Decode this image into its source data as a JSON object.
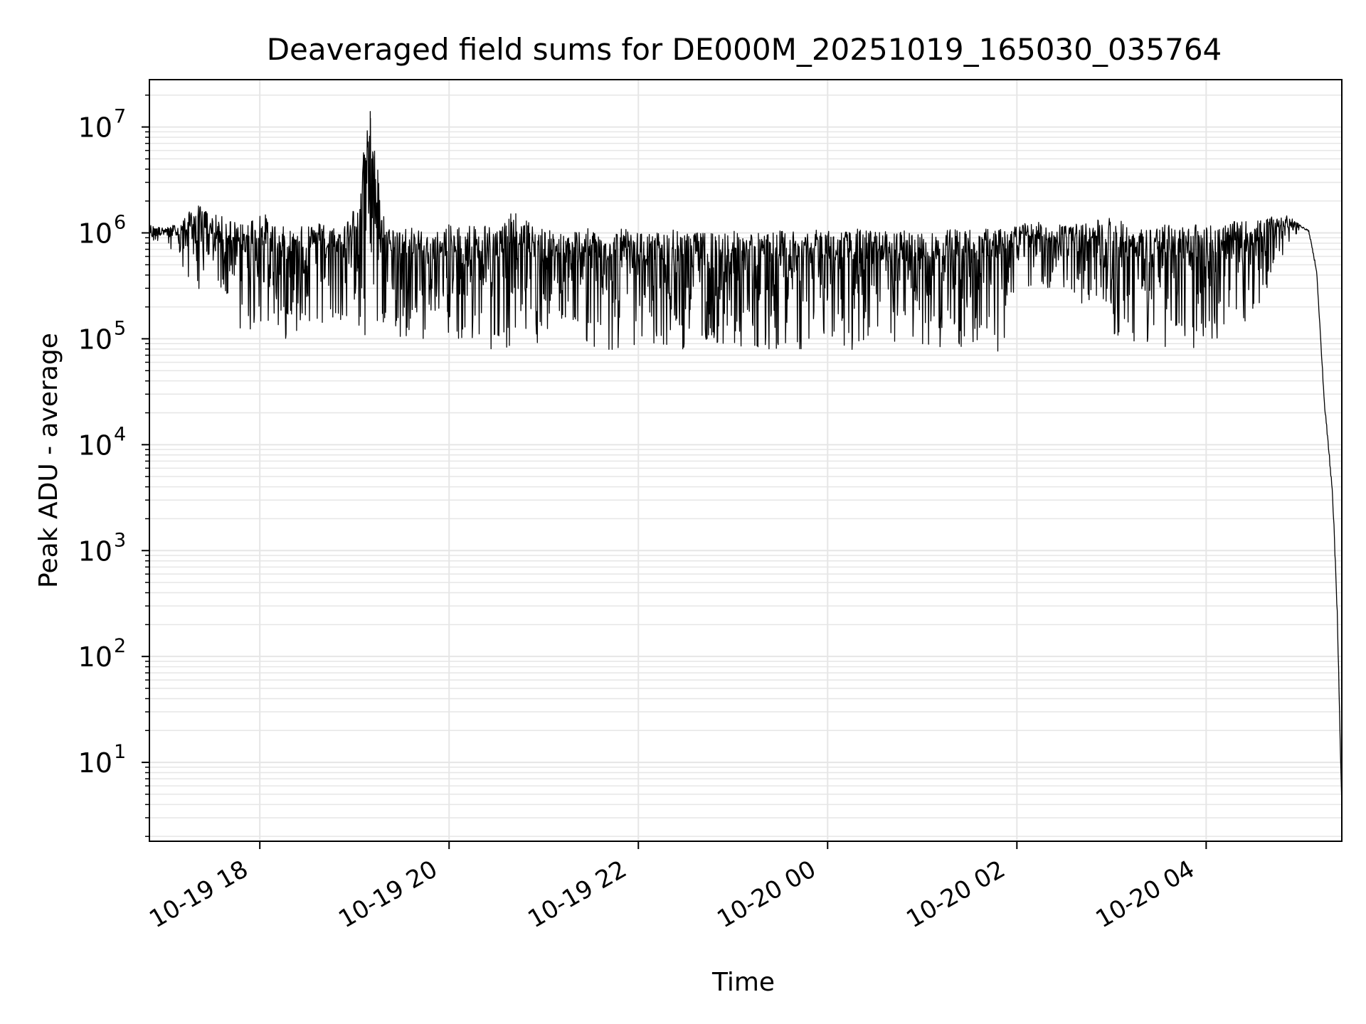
{
  "chart_data": {
    "type": "line",
    "title": "Deaveraged field sums for DE000M_20251019_165030_035764",
    "xlabel": "Time",
    "ylabel": "Peak ADU - average",
    "y_scale": "log",
    "ylim": [
      1.8,
      28000000
    ],
    "xlim": [
      "2025-10-19 16:50",
      "2025-10-20 05:26"
    ],
    "grid": true,
    "legend": "none",
    "line_color": "#000000",
    "grid_color": "#e6e6e6",
    "x_ticks": [
      {
        "value": "2025-10-19 18:00",
        "label": "10-19 18"
      },
      {
        "value": "2025-10-19 20:00",
        "label": "10-19 20"
      },
      {
        "value": "2025-10-19 22:00",
        "label": "10-19 22"
      },
      {
        "value": "2025-10-20 00:00",
        "label": "10-20 00"
      },
      {
        "value": "2025-10-20 02:00",
        "label": "10-20 02"
      },
      {
        "value": "2025-10-20 04:00",
        "label": "10-20 04"
      }
    ],
    "y_ticks": [
      {
        "value": 10,
        "base": "10",
        "exp": "1"
      },
      {
        "value": 100,
        "base": "10",
        "exp": "2"
      },
      {
        "value": 1000,
        "base": "10",
        "exp": "3"
      },
      {
        "value": 10000,
        "base": "10",
        "exp": "4"
      },
      {
        "value": 100000,
        "base": "10",
        "exp": "5"
      },
      {
        "value": 1000000,
        "base": "10",
        "exp": "6"
      },
      {
        "value": 10000000,
        "base": "10",
        "exp": "7"
      }
    ],
    "series": [
      {
        "x": [
          "2025-10-19 16:50",
          "2025-10-19 17:00",
          "2025-10-19 17:10",
          "2025-10-19 17:20",
          "2025-10-19 17:30",
          "2025-10-19 17:40",
          "2025-10-19 17:50",
          "2025-10-19 18:00",
          "2025-10-19 18:10",
          "2025-10-19 18:20",
          "2025-10-19 18:30",
          "2025-10-19 18:40",
          "2025-10-19 18:50",
          "2025-10-19 19:00",
          "2025-10-19 19:10",
          "2025-10-19 19:20",
          "2025-10-19 19:30",
          "2025-10-19 19:40",
          "2025-10-19 19:50",
          "2025-10-19 20:00",
          "2025-10-19 20:10",
          "2025-10-19 20:20",
          "2025-10-19 20:30",
          "2025-10-19 20:40",
          "2025-10-19 20:50",
          "2025-10-19 21:00",
          "2025-10-19 21:10",
          "2025-10-19 21:20",
          "2025-10-19 21:30",
          "2025-10-19 21:40",
          "2025-10-19 21:50",
          "2025-10-19 22:00",
          "2025-10-19 22:10",
          "2025-10-19 22:20",
          "2025-10-19 22:30",
          "2025-10-19 22:40",
          "2025-10-19 22:50",
          "2025-10-19 23:00",
          "2025-10-19 23:10",
          "2025-10-19 23:20",
          "2025-10-19 23:30",
          "2025-10-19 23:40",
          "2025-10-19 23:50",
          "2025-10-20 00:00",
          "2025-10-20 00:10",
          "2025-10-20 00:20",
          "2025-10-20 00:30",
          "2025-10-20 00:40",
          "2025-10-20 00:50",
          "2025-10-20 01:00",
          "2025-10-20 01:10",
          "2025-10-20 01:20",
          "2025-10-20 01:30",
          "2025-10-20 01:40",
          "2025-10-20 01:50",
          "2025-10-20 02:00",
          "2025-10-20 02:10",
          "2025-10-20 02:20",
          "2025-10-20 02:30",
          "2025-10-20 02:40",
          "2025-10-20 02:50",
          "2025-10-20 03:00",
          "2025-10-20 03:10",
          "2025-10-20 03:20",
          "2025-10-20 03:30",
          "2025-10-20 03:40",
          "2025-10-20 03:50",
          "2025-10-20 04:00",
          "2025-10-20 04:10",
          "2025-10-20 04:20",
          "2025-10-20 04:30",
          "2025-10-20 04:40",
          "2025-10-20 04:50",
          "2025-10-20 05:00",
          "2025-10-20 05:05",
          "2025-10-20 05:10",
          "2025-10-20 05:15",
          "2025-10-20 05:20",
          "2025-10-20 05:23",
          "2025-10-20 05:24",
          "2025-10-20 05:25",
          "2025-10-20 05:26"
        ],
        "y_high": [
          1200000,
          1100000,
          1300000,
          1900000,
          1500000,
          1400000,
          1200000,
          1700000,
          1200000,
          1100000,
          1200000,
          1300000,
          1100000,
          1800000,
          14000000,
          1100000,
          1200000,
          1100000,
          1000000,
          1200000,
          1200000,
          1300000,
          1100000,
          1600000,
          1300000,
          1100000,
          1000000,
          1100000,
          1100000,
          1000000,
          1100000,
          1000000,
          1000000,
          1100000,
          1000000,
          1000000,
          1100000,
          1050000,
          1050000,
          1000000,
          1050000,
          1100000,
          1050000,
          1100000,
          1050000,
          1100000,
          1050000,
          1050000,
          1050000,
          1000000,
          1000000,
          1100000,
          1100000,
          1100000,
          1100000,
          1200000,
          1300000,
          1200000,
          1300000,
          1200000,
          1300000,
          1500000,
          1200000,
          1100000,
          1200000,
          1200000,
          1200000,
          1300000,
          1200000,
          1300000,
          1300000,
          1400000,
          1500000,
          1200000,
          1100000,
          500000,
          30000,
          5000,
          500,
          100,
          20,
          4
        ],
        "y_low": [
          700000,
          900000,
          350000,
          300000,
          250000,
          200000,
          100000,
          130000,
          100000,
          100000,
          150000,
          130000,
          130000,
          130000,
          80000,
          110000,
          100000,
          100000,
          100000,
          80000,
          90000,
          80000,
          80000,
          80000,
          90000,
          80000,
          80000,
          70000,
          80000,
          70000,
          80000,
          70000,
          80000,
          80000,
          80000,
          80000,
          80000,
          70000,
          80000,
          80000,
          80000,
          80000,
          80000,
          80000,
          70000,
          80000,
          80000,
          80000,
          80000,
          80000,
          80000,
          80000,
          80000,
          70000,
          75000,
          300000,
          300000,
          300000,
          300000,
          200000,
          250000,
          110000,
          90000,
          80000,
          80000,
          75000,
          80000,
          90000,
          100000,
          110000,
          150000,
          300000,
          700000,
          1100000,
          1000000,
          400000,
          20000,
          3000,
          200,
          50,
          10,
          3.8
        ]
      }
    ]
  }
}
